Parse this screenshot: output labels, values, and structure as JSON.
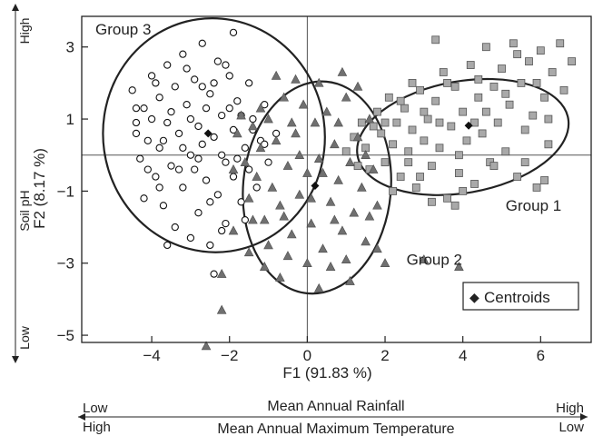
{
  "chart_data": {
    "type": "scatter",
    "xlabel": "F1 (91.83 %)",
    "ylabel": "F2 (8.17 %)",
    "y_secondary_label": "Soil pH",
    "y_secondary_low": "Low",
    "y_secondary_high": "High",
    "xlim": [
      -5.8,
      7.3
    ],
    "ylim": [
      -5.2,
      3.85
    ],
    "xticks": [
      -4,
      -2,
      0,
      2,
      4,
      6
    ],
    "yticks": [
      -5,
      -3,
      -1,
      1,
      3
    ],
    "xtick_labels": [
      "−4",
      "−2",
      "0",
      "2",
      "4",
      "6"
    ],
    "ytick_labels": [
      "−5",
      "−3",
      "−1",
      "1",
      "3"
    ],
    "zero_lines": true,
    "legend": {
      "label": "Centroids",
      "placement": "bottom-right",
      "marker": "◆"
    },
    "bottom_axes": [
      {
        "title": "Mean Annual Rainfall",
        "left": "Low",
        "right": "High"
      },
      {
        "title": "Mean Annual Maximum Temperature",
        "left": "High",
        "right": "Low"
      }
    ],
    "colors": {
      "group1": "#a9a9a9",
      "group2": "#707070",
      "group3_fill": "#ffffff",
      "outline": "#222222"
    },
    "series": [
      {
        "name": "Group 1",
        "marker": "square",
        "label_anchor": [
          5.1,
          -1.55
        ],
        "centroid": [
          4.15,
          0.82
        ],
        "ellipse": {
          "center": [
            4.0,
            0.5
          ],
          "rx": 2.75,
          "ry": 1.55,
          "angle_deg": 10
        },
        "points": [
          [
            1.0,
            0.1
          ],
          [
            1.2,
            0.5
          ],
          [
            1.4,
            0.9
          ],
          [
            1.5,
            0.2
          ],
          [
            1.6,
            -0.4
          ],
          [
            1.8,
            1.2
          ],
          [
            1.9,
            0.6
          ],
          [
            2.0,
            -0.2
          ],
          [
            2.1,
            1.6
          ],
          [
            2.2,
            0.3
          ],
          [
            2.3,
            0.9
          ],
          [
            2.4,
            -0.6
          ],
          [
            2.5,
            1.3
          ],
          [
            2.6,
            0.1
          ],
          [
            2.7,
            0.7
          ],
          [
            2.8,
            -0.9
          ],
          [
            2.9,
            1.8
          ],
          [
            3.0,
            0.4
          ],
          [
            3.1,
            1.0
          ],
          [
            3.2,
            -0.3
          ],
          [
            3.3,
            1.5
          ],
          [
            3.4,
            0.2
          ],
          [
            3.5,
            2.3
          ],
          [
            3.6,
            -1.2
          ],
          [
            3.7,
            0.8
          ],
          [
            3.8,
            1.9
          ],
          [
            3.9,
            -0.5
          ],
          [
            4.0,
            1.2
          ],
          [
            4.1,
            0.4
          ],
          [
            4.2,
            2.5
          ],
          [
            4.3,
            -0.8
          ],
          [
            4.4,
            1.6
          ],
          [
            4.5,
            0.6
          ],
          [
            4.6,
            3.0
          ],
          [
            4.7,
            -0.2
          ],
          [
            4.8,
            1.9
          ],
          [
            4.9,
            0.9
          ],
          [
            5.0,
            2.4
          ],
          [
            5.1,
            0.1
          ],
          [
            5.2,
            1.4
          ],
          [
            5.3,
            3.1
          ],
          [
            5.4,
            -0.6
          ],
          [
            5.5,
            2.0
          ],
          [
            5.6,
            0.7
          ],
          [
            5.7,
            2.6
          ],
          [
            5.8,
            1.1
          ],
          [
            5.9,
            -0.9
          ],
          [
            6.0,
            2.9
          ],
          [
            6.1,
            1.6
          ],
          [
            6.2,
            0.3
          ],
          [
            6.3,
            2.3
          ],
          [
            6.5,
            3.1
          ],
          [
            6.6,
            1.8
          ],
          [
            6.8,
            2.6
          ],
          [
            3.0,
            1.2
          ],
          [
            3.4,
            0.9
          ],
          [
            2.9,
            -0.6
          ],
          [
            2.4,
            1.5
          ],
          [
            4.0,
            -1.0
          ],
          [
            3.6,
            2.0
          ],
          [
            1.3,
            -0.3
          ],
          [
            1.7,
            0.8
          ],
          [
            2.2,
            -1.0
          ],
          [
            3.8,
            -1.4
          ],
          [
            4.6,
            1.2
          ],
          [
            5.1,
            1.7
          ],
          [
            5.9,
            2.0
          ],
          [
            6.2,
            1.0
          ],
          [
            5.4,
            2.8
          ],
          [
            3.3,
            3.2
          ],
          [
            4.4,
            2.1
          ],
          [
            2.7,
            2.0
          ],
          [
            3.2,
            -1.3
          ],
          [
            4.8,
            -0.3
          ],
          [
            5.6,
            -0.2
          ],
          [
            6.1,
            -0.7
          ],
          [
            2.0,
            0.9
          ],
          [
            2.6,
            -0.2
          ],
          [
            3.9,
            0.0
          ],
          [
            4.3,
            0.9
          ]
        ]
      },
      {
        "name": "Group 2",
        "marker": "triangle",
        "label_anchor": [
          2.55,
          -3.05
        ],
        "centroid": [
          0.2,
          -0.85
        ],
        "ellipse": {
          "center": [
            0.25,
            -0.9
          ],
          "rx": 1.9,
          "ry": 2.95,
          "angle_deg": -5
        },
        "points": [
          [
            -1.8,
            0.6
          ],
          [
            -1.6,
            -0.2
          ],
          [
            -1.5,
            -1.2
          ],
          [
            -1.4,
            0.8
          ],
          [
            -1.3,
            -0.6
          ],
          [
            -1.2,
            0.2
          ],
          [
            -1.1,
            -1.8
          ],
          [
            -1.0,
            1.0
          ],
          [
            -0.9,
            -0.9
          ],
          [
            -0.8,
            0.4
          ],
          [
            -0.7,
            -1.4
          ],
          [
            -0.6,
            1.6
          ],
          [
            -0.5,
            -0.3
          ],
          [
            -0.4,
            -2.2
          ],
          [
            -0.3,
            0.6
          ],
          [
            -0.2,
            -1.1
          ],
          [
            -0.1,
            1.4
          ],
          [
            0.0,
            -0.5
          ],
          [
            0.1,
            -1.9
          ],
          [
            0.2,
            0.9
          ],
          [
            0.3,
            -0.1
          ],
          [
            0.4,
            -2.6
          ],
          [
            0.5,
            1.2
          ],
          [
            0.6,
            -1.3
          ],
          [
            0.7,
            0.3
          ],
          [
            0.8,
            -0.7
          ],
          [
            0.9,
            -2.1
          ],
          [
            1.0,
            1.6
          ],
          [
            1.1,
            -0.2
          ],
          [
            1.2,
            -1.6
          ],
          [
            1.3,
            0.5
          ],
          [
            1.4,
            -0.9
          ],
          [
            1.5,
            -2.4
          ],
          [
            1.6,
            1.0
          ],
          [
            1.7,
            -0.4
          ],
          [
            1.8,
            -1.4
          ],
          [
            -1.4,
            -1.8
          ],
          [
            -1.0,
            -2.5
          ],
          [
            -0.5,
            -2.8
          ],
          [
            0.0,
            -3.0
          ],
          [
            0.6,
            -3.1
          ],
          [
            1.0,
            -2.9
          ],
          [
            -0.8,
            2.2
          ],
          [
            -0.3,
            2.1
          ],
          [
            0.3,
            2.0
          ],
          [
            0.9,
            2.3
          ],
          [
            1.3,
            1.9
          ],
          [
            -1.9,
            -0.4
          ],
          [
            -0.2,
            0.0
          ],
          [
            0.4,
            -0.5
          ],
          [
            -0.6,
            -1.7
          ],
          [
            0.7,
            -1.8
          ],
          [
            -1.2,
            1.3
          ],
          [
            1.5,
            0.0
          ],
          [
            -2.2,
            -3.3
          ],
          [
            -2.6,
            -5.3
          ],
          [
            -2.2,
            -4.3
          ],
          [
            -1.9,
            -2.1
          ],
          [
            -1.5,
            -2.7
          ],
          [
            2.0,
            -3.0
          ],
          [
            3.0,
            -2.9
          ],
          [
            3.9,
            -3.1
          ],
          [
            6.0,
            -4.1
          ],
          [
            -0.7,
            -3.4
          ],
          [
            0.3,
            -3.7
          ],
          [
            1.1,
            -3.5
          ],
          [
            1.8,
            -2.6
          ],
          [
            -1.1,
            -3.1
          ],
          [
            0.1,
            -1.2
          ],
          [
            -0.4,
            0.9
          ],
          [
            0.8,
            0.9
          ],
          [
            1.6,
            -1.7
          ],
          [
            -1.7,
            1.1
          ]
        ]
      },
      {
        "name": "Group 3",
        "marker": "circle",
        "label_anchor": [
          -5.45,
          3.35
        ],
        "centroid": [
          -2.55,
          0.6
        ],
        "ellipse": {
          "center": [
            -2.4,
            0.55
          ],
          "rx": 2.85,
          "ry": 3.25,
          "angle_deg": 8
        },
        "points": [
          [
            -4.5,
            1.8
          ],
          [
            -4.4,
            0.9
          ],
          [
            -4.3,
            -0.1
          ],
          [
            -4.2,
            1.3
          ],
          [
            -4.2,
            -1.2
          ],
          [
            -4.1,
            0.4
          ],
          [
            -4.0,
            2.2
          ],
          [
            -3.9,
            -0.6
          ],
          [
            -3.8,
            1.6
          ],
          [
            -3.8,
            0.2
          ],
          [
            -3.7,
            -1.4
          ],
          [
            -3.6,
            2.5
          ],
          [
            -3.6,
            0.9
          ],
          [
            -3.5,
            -0.3
          ],
          [
            -3.4,
            1.9
          ],
          [
            -3.4,
            -2.0
          ],
          [
            -3.3,
            0.6
          ],
          [
            -3.2,
            2.8
          ],
          [
            -3.2,
            -0.9
          ],
          [
            -3.1,
            1.4
          ],
          [
            -3.0,
            0.0
          ],
          [
            -3.0,
            -2.3
          ],
          [
            -2.9,
            2.1
          ],
          [
            -2.8,
            0.8
          ],
          [
            -2.8,
            -1.6
          ],
          [
            -2.7,
            3.1
          ],
          [
            -2.7,
            0.3
          ],
          [
            -2.6,
            -0.7
          ],
          [
            -2.5,
            1.7
          ],
          [
            -2.5,
            -2.5
          ],
          [
            -2.4,
            0.5
          ],
          [
            -2.3,
            2.6
          ],
          [
            -2.3,
            -1.1
          ],
          [
            -2.2,
            1.1
          ],
          [
            -2.1,
            -0.2
          ],
          [
            -2.1,
            -1.9
          ],
          [
            -2.0,
            2.2
          ],
          [
            -1.9,
            0.7
          ],
          [
            -1.9,
            -0.6
          ],
          [
            -1.8,
            1.5
          ],
          [
            -1.7,
            -1.3
          ],
          [
            -1.6,
            0.2
          ],
          [
            -1.5,
            2.0
          ],
          [
            -1.5,
            -0.4
          ],
          [
            -1.4,
            1.0
          ],
          [
            -1.3,
            -0.9
          ],
          [
            -1.2,
            0.4
          ],
          [
            -1.1,
            1.4
          ],
          [
            -1.0,
            -0.2
          ],
          [
            -0.8,
            0.6
          ],
          [
            -4.4,
            0.6
          ],
          [
            -4.0,
            1.0
          ],
          [
            -3.7,
            0.4
          ],
          [
            -3.3,
            -0.4
          ],
          [
            -2.9,
            -0.4
          ],
          [
            -2.6,
            1.3
          ],
          [
            -2.2,
            0.0
          ],
          [
            -1.8,
            -0.1
          ],
          [
            -3.5,
            1.2
          ],
          [
            -3.0,
            1.0
          ],
          [
            -2.4,
            2.0
          ],
          [
            -2.0,
            1.3
          ],
          [
            -3.9,
            2.0
          ],
          [
            -3.1,
            2.4
          ],
          [
            -2.5,
            -1.3
          ],
          [
            -2.2,
            -2.1
          ],
          [
            -1.6,
            -1.8
          ],
          [
            -1.9,
            3.4
          ],
          [
            -2.4,
            -3.3
          ],
          [
            -3.6,
            -2.5
          ],
          [
            -4.4,
            1.3
          ],
          [
            -4.1,
            -0.4
          ],
          [
            -2.8,
            -0.1
          ],
          [
            -1.4,
            0.7
          ],
          [
            -1.1,
            0.3
          ],
          [
            -3.8,
            -0.9
          ],
          [
            -3.2,
            0.2
          ],
          [
            -2.7,
            1.9
          ],
          [
            -2.1,
            2.5
          ],
          [
            -1.7,
            1.1
          ]
        ]
      }
    ]
  }
}
